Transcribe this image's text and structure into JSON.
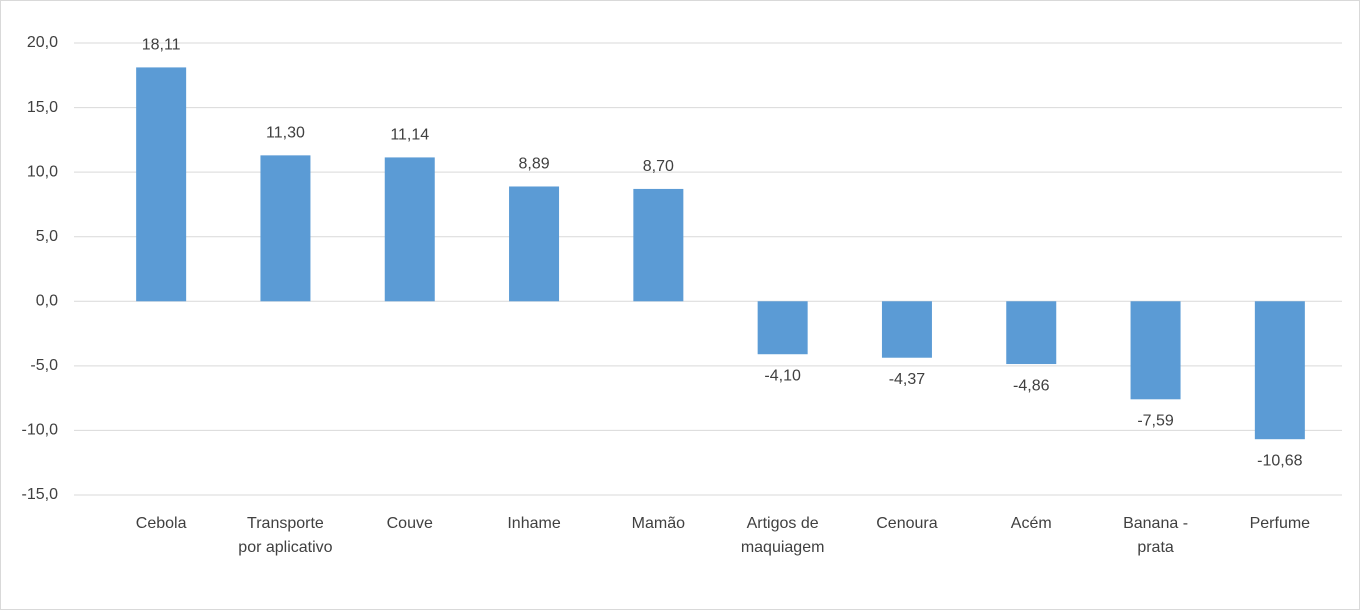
{
  "chart_data": {
    "type": "bar",
    "categories": [
      "Cebola",
      "Transporte por aplicativo",
      "Couve",
      "Inhame",
      "Mamão",
      "Artigos de maquiagem",
      "Cenoura",
      "Acém",
      "Banana - prata",
      "Perfume"
    ],
    "values": [
      18.11,
      11.3,
      11.14,
      8.89,
      8.7,
      -4.1,
      -4.37,
      -4.86,
      -7.59,
      -10.68
    ],
    "value_labels": [
      "18,11",
      "11,30",
      "11,14",
      "8,89",
      "8,70",
      "-4,10",
      "-4,37",
      "-4,86",
      "-7,59",
      "-10,68"
    ],
    "color": "#5b9bd5",
    "ylim": [
      -15,
      20
    ],
    "yticks": [
      {
        "value": -15,
        "label": "-15,0"
      },
      {
        "value": -10,
        "label": "-10,0"
      },
      {
        "value": -5,
        "label": "-5,0"
      },
      {
        "value": 0,
        "label": "0,0"
      },
      {
        "value": 5,
        "label": "5,0"
      },
      {
        "value": 10,
        "label": "10,0"
      },
      {
        "value": 15,
        "label": "15,0"
      },
      {
        "value": 20,
        "label": "20,0"
      }
    ],
    "grid": true
  }
}
